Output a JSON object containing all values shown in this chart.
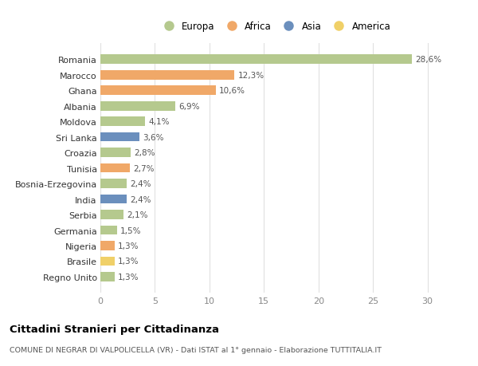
{
  "categories": [
    "Romania",
    "Marocco",
    "Ghana",
    "Albania",
    "Moldova",
    "Sri Lanka",
    "Croazia",
    "Tunisia",
    "Bosnia-Erzegovina",
    "India",
    "Serbia",
    "Germania",
    "Nigeria",
    "Brasile",
    "Regno Unito"
  ],
  "values": [
    28.6,
    12.3,
    10.6,
    6.9,
    4.1,
    3.6,
    2.8,
    2.7,
    2.4,
    2.4,
    2.1,
    1.5,
    1.3,
    1.3,
    1.3
  ],
  "labels": [
    "28,6%",
    "12,3%",
    "10,6%",
    "6,9%",
    "4,1%",
    "3,6%",
    "2,8%",
    "2,7%",
    "2,4%",
    "2,4%",
    "2,1%",
    "1,5%",
    "1,3%",
    "1,3%",
    "1,3%"
  ],
  "continents": [
    "Europa",
    "Africa",
    "Africa",
    "Europa",
    "Europa",
    "Asia",
    "Europa",
    "Africa",
    "Europa",
    "Asia",
    "Europa",
    "Europa",
    "Africa",
    "America",
    "Europa"
  ],
  "colors": {
    "Europa": "#b5c98e",
    "Africa": "#f0a868",
    "Asia": "#6b8fbd",
    "America": "#f0d068"
  },
  "xlim": [
    0,
    32
  ],
  "xticks": [
    0,
    5,
    10,
    15,
    20,
    25,
    30
  ],
  "title": "Cittadini Stranieri per Cittadinanza",
  "subtitle": "COMUNE DI NEGRAR DI VALPOLICELLA (VR) - Dati ISTAT al 1° gennaio - Elaborazione TUTTITALIA.IT",
  "background_color": "#ffffff",
  "grid_color": "#e0e0e0",
  "legend_order": [
    "Europa",
    "Africa",
    "Asia",
    "America"
  ]
}
